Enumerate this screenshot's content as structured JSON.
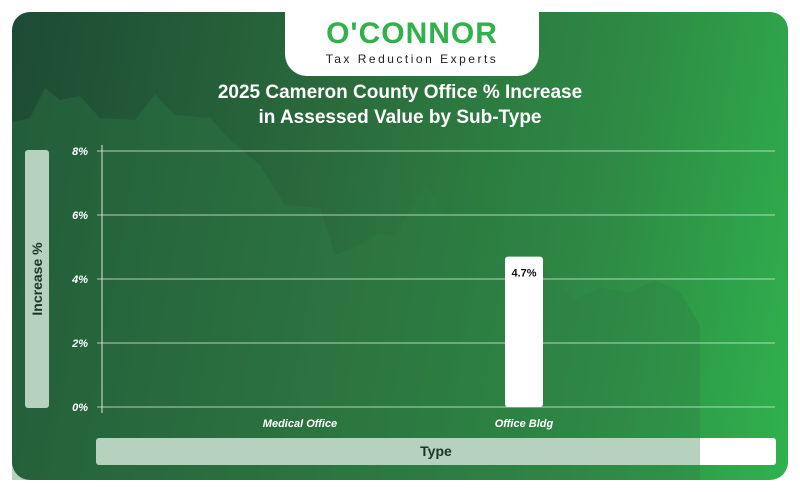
{
  "logo": {
    "brand": "O'CONNOR",
    "tagline": "Tax Reduction Experts"
  },
  "chart_data": {
    "type": "bar",
    "title": "2025 Cameron County Office % Increase in Assessed Value by Sub-Type",
    "title_lines": [
      "2025 Cameron County Office % Increase",
      "in Assessed Value by Sub-Type"
    ],
    "xlabel": "Type",
    "ylabel": "Increase %",
    "categories": [
      "Medical Office",
      "Office Bldg"
    ],
    "values": [
      null,
      4.7
    ],
    "data_labels": [
      "",
      "4.7%"
    ],
    "ylim": [
      0,
      8
    ],
    "yticks": [
      "0%",
      "2%",
      "4%",
      "6%",
      "8%"
    ],
    "grid": true,
    "bar_color": "#ffffff"
  }
}
